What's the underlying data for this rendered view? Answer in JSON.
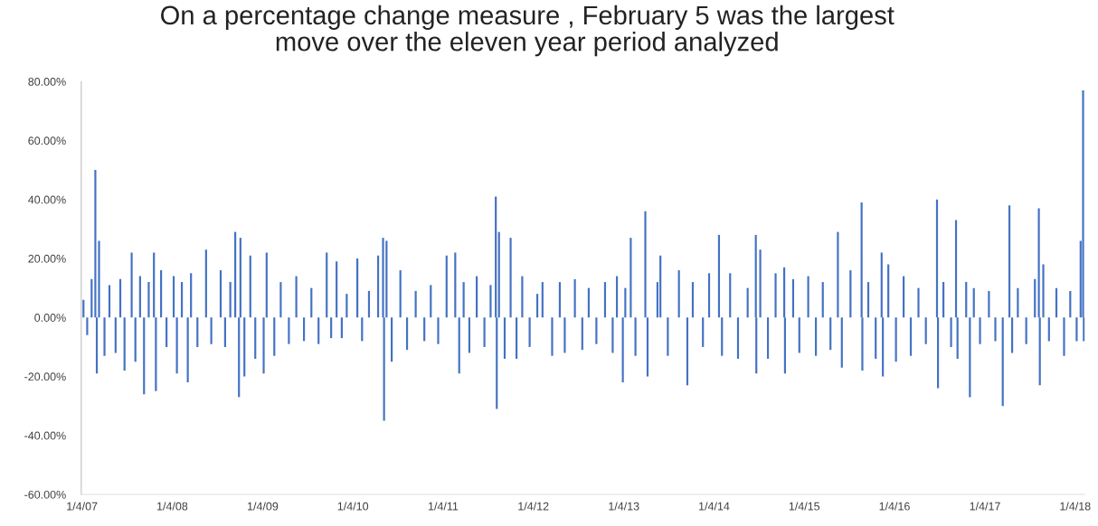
{
  "chart_data": {
    "type": "bar",
    "title": "On a percentage change measure , February 5 was the largest\nmove over the eleven year period analyzed",
    "x": [
      "2007-01-10",
      "2007-01-25",
      "2007-02-12",
      "2007-02-27",
      "2007-03-05",
      "2007-03-14",
      "2007-04-05",
      "2007-04-25",
      "2007-05-20",
      "2007-06-08",
      "2007-06-25",
      "2007-07-24",
      "2007-08-08",
      "2007-08-27",
      "2007-09-12",
      "2007-10-01",
      "2007-10-22",
      "2007-10-30",
      "2007-11-20",
      "2007-12-12",
      "2008-01-10",
      "2008-01-23",
      "2008-02-12",
      "2008-03-07",
      "2008-03-20",
      "2008-04-15",
      "2008-05-20",
      "2008-06-10",
      "2008-07-18",
      "2008-08-05",
      "2008-08-26",
      "2008-09-15",
      "2008-09-30",
      "2008-10-06",
      "2008-10-22",
      "2008-11-15",
      "2008-12-05",
      "2009-01-08",
      "2009-01-20",
      "2009-02-20",
      "2009-03-18",
      "2009-04-20",
      "2009-05-20",
      "2009-06-20",
      "2009-07-20",
      "2009-08-18",
      "2009-09-20",
      "2009-10-08",
      "2009-10-30",
      "2009-11-20",
      "2009-12-10",
      "2010-01-22",
      "2010-02-10",
      "2010-03-10",
      "2010-04-16",
      "2010-05-06",
      "2010-05-10",
      "2010-05-20",
      "2010-06-10",
      "2010-07-15",
      "2010-08-11",
      "2010-09-15",
      "2010-10-20",
      "2010-11-15",
      "2010-12-15",
      "2011-01-18",
      "2011-02-22",
      "2011-03-10",
      "2011-03-28",
      "2011-04-20",
      "2011-05-20",
      "2011-06-20",
      "2011-07-15",
      "2011-08-05",
      "2011-08-09",
      "2011-08-18",
      "2011-09-10",
      "2011-10-04",
      "2011-10-28",
      "2011-11-20",
      "2011-12-20",
      "2012-01-20",
      "2012-02-10",
      "2012-03-20",
      "2012-04-20",
      "2012-05-10",
      "2012-06-20",
      "2012-07-20",
      "2012-08-15",
      "2012-09-15",
      "2012-10-20",
      "2012-11-20",
      "2012-12-07",
      "2012-12-31",
      "2013-01-10",
      "2013-02-01",
      "2013-02-20",
      "2013-04-01",
      "2013-04-10",
      "2013-05-20",
      "2013-06-01",
      "2013-07-01",
      "2013-08-15",
      "2013-09-18",
      "2013-10-10",
      "2013-11-20",
      "2013-12-15",
      "2014-01-24",
      "2014-02-05",
      "2014-03-10",
      "2014-04-11",
      "2014-05-20",
      "2014-06-22",
      "2014-06-24",
      "2014-07-10",
      "2014-08-10",
      "2014-09-10",
      "2014-10-15",
      "2014-10-18",
      "2014-11-20",
      "2014-12-15",
      "2015-01-20",
      "2015-02-20",
      "2015-03-20",
      "2015-04-20",
      "2015-05-20",
      "2015-06-05",
      "2015-07-10",
      "2015-08-24",
      "2015-08-27",
      "2015-09-20",
      "2015-10-20",
      "2015-11-13",
      "2015-11-18",
      "2015-12-10",
      "2016-01-10",
      "2016-02-10",
      "2016-03-10",
      "2016-04-10",
      "2016-05-10",
      "2016-06-24",
      "2016-06-28",
      "2016-07-20",
      "2016-08-20",
      "2016-09-09",
      "2016-09-15",
      "2016-10-20",
      "2016-11-04",
      "2016-11-20",
      "2016-12-15",
      "2017-01-20",
      "2017-02-15",
      "2017-03-17",
      "2017-04-13",
      "2017-04-24",
      "2017-05-17",
      "2017-06-20",
      "2017-07-25",
      "2017-08-10",
      "2017-08-14",
      "2017-08-28",
      "2017-09-20",
      "2017-10-20",
      "2017-11-20",
      "2017-12-15",
      "2018-01-10",
      "2018-01-26",
      "2018-02-05",
      "2018-02-08"
    ],
    "values": [
      6,
      -6,
      13,
      50,
      -19,
      26,
      -13,
      11,
      -12,
      13,
      -18,
      22,
      -15,
      14,
      -26,
      12,
      22,
      -25,
      16,
      -10,
      14,
      -19,
      12,
      -22,
      15,
      -10,
      23,
      -9,
      16,
      -10,
      12,
      29,
      -27,
      27,
      -20,
      21,
      -14,
      -19,
      22,
      -13,
      12,
      -9,
      14,
      -8,
      10,
      -9,
      22,
      -7,
      19,
      -7,
      8,
      20,
      -8,
      9,
      21,
      27,
      -35,
      26,
      -15,
      16,
      -11,
      9,
      -8,
      11,
      -9,
      21,
      22,
      -19,
      12,
      -12,
      14,
      -10,
      11,
      41,
      -31,
      29,
      -14,
      27,
      -14,
      14,
      -10,
      8,
      12,
      -13,
      12,
      -12,
      13,
      -11,
      10,
      -9,
      12,
      -12,
      14,
      -22,
      10,
      27,
      -13,
      36,
      -20,
      12,
      21,
      -13,
      16,
      -23,
      12,
      -10,
      15,
      28,
      -13,
      15,
      -14,
      10,
      28,
      -19,
      23,
      -14,
      15,
      17,
      -19,
      13,
      -12,
      14,
      -13,
      12,
      -11,
      29,
      -17,
      16,
      39,
      -18,
      12,
      -14,
      22,
      -20,
      18,
      -15,
      14,
      -13,
      10,
      -9,
      40,
      -24,
      12,
      -10,
      33,
      -14,
      12,
      -27,
      10,
      -9,
      9,
      -8,
      -30,
      38,
      -12,
      10,
      -9,
      13,
      37,
      -23,
      18,
      -8,
      10,
      -13,
      9,
      -8,
      26,
      77,
      -8
    ],
    "color": "#4472c4",
    "xlim": [
      "2007-01-01",
      "2018-02-12"
    ],
    "xticks": [
      {
        "value": "2007-01-04",
        "label": "1/4/07"
      },
      {
        "value": "2008-01-04",
        "label": "1/4/08"
      },
      {
        "value": "2009-01-04",
        "label": "1/4/09"
      },
      {
        "value": "2010-01-04",
        "label": "1/4/10"
      },
      {
        "value": "2011-01-04",
        "label": "1/4/11"
      },
      {
        "value": "2012-01-04",
        "label": "1/4/12"
      },
      {
        "value": "2013-01-04",
        "label": "1/4/13"
      },
      {
        "value": "2014-01-04",
        "label": "1/4/14"
      },
      {
        "value": "2015-01-04",
        "label": "1/4/15"
      },
      {
        "value": "2016-01-04",
        "label": "1/4/16"
      },
      {
        "value": "2017-01-04",
        "label": "1/4/17"
      },
      {
        "value": "2018-01-04",
        "label": "1/4/18"
      }
    ],
    "ylim": [
      -60,
      80
    ],
    "yticks": [
      {
        "value": -60,
        "label": "-60.00%"
      },
      {
        "value": -40,
        "label": "-40.00%"
      },
      {
        "value": -20,
        "label": "-20.00%"
      },
      {
        "value": 0,
        "label": "0.00%"
      },
      {
        "value": 20,
        "label": "20.00%"
      },
      {
        "value": 40,
        "label": "40.00%"
      },
      {
        "value": 60,
        "label": "60.00%"
      },
      {
        "value": 80,
        "label": "80.00%"
      }
    ],
    "grid": false,
    "legend": false
  }
}
